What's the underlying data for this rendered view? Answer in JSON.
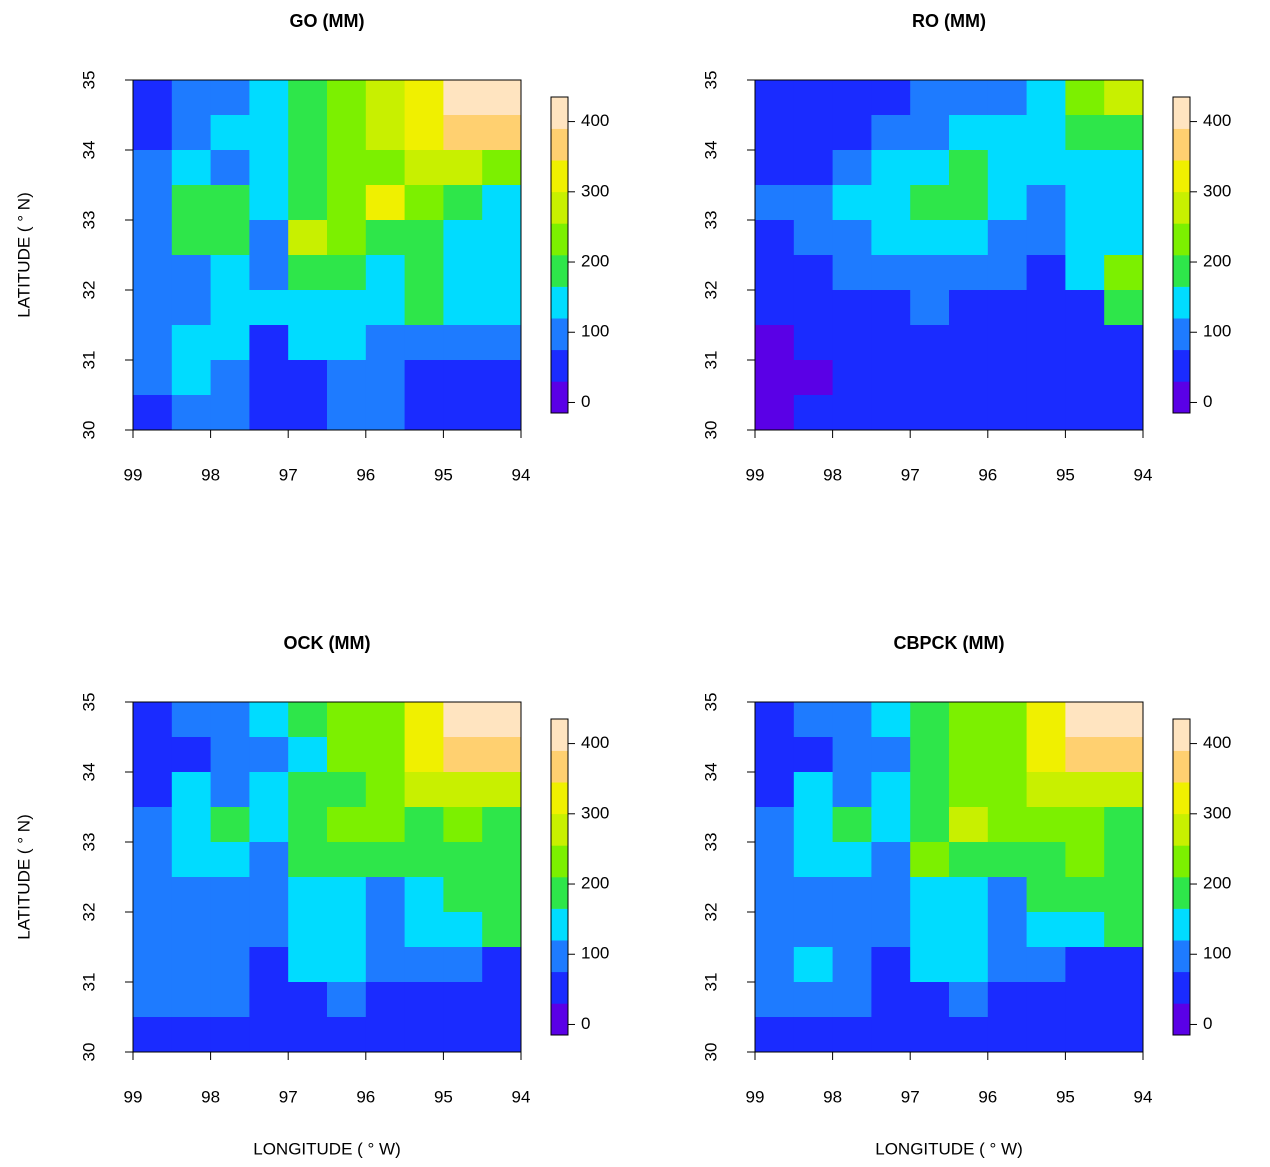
{
  "chart_data": [
    {
      "type": "heatmap",
      "title": "GO (MM)",
      "ylabel": "LATITUDE ( ° N)",
      "x": [
        98.75,
        98.25,
        97.75,
        97.25,
        96.75,
        96.25,
        95.75,
        95.25,
        94.75,
        94.25
      ],
      "y": [
        34.75,
        34.25,
        33.75,
        33.25,
        32.75,
        32.25,
        31.75,
        31.25,
        30.75,
        30.25
      ],
      "z": [
        [
          60,
          90,
          100,
          150,
          190,
          230,
          260,
          330,
          400,
          420
        ],
        [
          50,
          100,
          130,
          120,
          170,
          220,
          260,
          320,
          360,
          350
        ],
        [
          90,
          130,
          80,
          140,
          190,
          220,
          250,
          280,
          260,
          230
        ],
        [
          100,
          180,
          180,
          150,
          170,
          230,
          300,
          240,
          200,
          150
        ],
        [
          90,
          180,
          170,
          80,
          280,
          210,
          180,
          190,
          160,
          130
        ],
        [
          110,
          110,
          140,
          100,
          170,
          190,
          130,
          190,
          150,
          120
        ],
        [
          100,
          100,
          130,
          120,
          120,
          150,
          130,
          170,
          140,
          150
        ],
        [
          110,
          140,
          120,
          60,
          130,
          140,
          100,
          110,
          90,
          80
        ],
        [
          100,
          120,
          110,
          40,
          60,
          100,
          90,
          60,
          50,
          40
        ],
        [
          50,
          100,
          80,
          40,
          70,
          80,
          90,
          40,
          30,
          40
        ]
      ],
      "xlim": [
        99,
        94
      ],
      "ylim": [
        30,
        35
      ],
      "xticks": [
        99,
        98,
        97,
        96,
        95,
        94
      ],
      "yticks": [
        30,
        31,
        32,
        33,
        34,
        35
      ],
      "breaks": [
        -15,
        30,
        75,
        120,
        165,
        210,
        255,
        300,
        345,
        390,
        435
      ],
      "colors": [
        "#5a00e6",
        "#1a2bff",
        "#1e7bff",
        "#00dcff",
        "#2ee64a",
        "#7cf000",
        "#c8f000",
        "#f0f000",
        "#ffd070",
        "#ffe4c0"
      ],
      "colorbar_ticks": [
        0,
        100,
        200,
        300,
        400
      ]
    },
    {
      "type": "heatmap",
      "title": "RO (MM)",
      "x": [
        98.75,
        98.25,
        97.75,
        97.25,
        96.75,
        96.25,
        95.75,
        95.25,
        94.75,
        94.25
      ],
      "y": [
        34.75,
        34.25,
        33.75,
        33.25,
        32.75,
        32.25,
        31.75,
        31.25,
        30.75,
        30.25
      ],
      "z": [
        [
          60,
          70,
          50,
          60,
          80,
          90,
          100,
          150,
          230,
          260
        ],
        [
          70,
          60,
          70,
          80,
          100,
          130,
          150,
          150,
          190,
          200
        ],
        [
          60,
          70,
          100,
          120,
          140,
          170,
          150,
          130,
          160,
          140
        ],
        [
          80,
          100,
          130,
          140,
          170,
          190,
          140,
          100,
          120,
          150
        ],
        [
          60,
          80,
          110,
          120,
          160,
          150,
          110,
          90,
          120,
          150
        ],
        [
          30,
          50,
          80,
          90,
          90,
          100,
          80,
          60,
          160,
          220
        ],
        [
          30,
          40,
          60,
          70,
          80,
          60,
          50,
          50,
          60,
          200
        ],
        [
          20,
          30,
          50,
          60,
          60,
          50,
          40,
          40,
          40,
          50
        ],
        [
          10,
          20,
          40,
          40,
          50,
          40,
          40,
          40,
          40,
          40
        ],
        [
          20,
          30,
          40,
          40,
          40,
          40,
          40,
          40,
          40,
          40
        ]
      ],
      "xlim": [
        99,
        94
      ],
      "ylim": [
        30,
        35
      ],
      "xticks": [
        99,
        98,
        97,
        96,
        95,
        94
      ],
      "yticks": [
        30,
        31,
        32,
        33,
        34,
        35
      ],
      "breaks": [
        -15,
        30,
        75,
        120,
        165,
        210,
        255,
        300,
        345,
        390,
        435
      ],
      "colors": [
        "#5a00e6",
        "#1a2bff",
        "#1e7bff",
        "#00dcff",
        "#2ee64a",
        "#7cf000",
        "#c8f000",
        "#f0f000",
        "#ffd070",
        "#ffe4c0"
      ],
      "colorbar_ticks": [
        0,
        100,
        200,
        300,
        400
      ]
    },
    {
      "type": "heatmap",
      "title": "OCK (MM)",
      "ylabel": "LATITUDE ( ° N)",
      "xlabel": "LONGITUDE ( ° W)",
      "x": [
        98.75,
        98.25,
        97.75,
        97.25,
        96.75,
        96.25,
        95.75,
        95.25,
        94.75,
        94.25
      ],
      "y": [
        34.75,
        34.25,
        33.75,
        33.25,
        32.75,
        32.25,
        31.75,
        31.25,
        30.75,
        30.25
      ],
      "z": [
        [
          50,
          80,
          100,
          130,
          170,
          220,
          240,
          320,
          400,
          410
        ],
        [
          40,
          70,
          110,
          110,
          160,
          220,
          230,
          310,
          360,
          370
        ],
        [
          60,
          120,
          80,
          150,
          180,
          200,
          220,
          270,
          280,
          260
        ],
        [
          90,
          160,
          180,
          150,
          180,
          230,
          210,
          200,
          220,
          170
        ],
        [
          80,
          120,
          150,
          110,
          200,
          180,
          170,
          170,
          200,
          190
        ],
        [
          80,
          90,
          110,
          90,
          130,
          150,
          110,
          160,
          170,
          170
        ],
        [
          80,
          90,
          110,
          100,
          120,
          140,
          110,
          130,
          120,
          170
        ],
        [
          90,
          110,
          100,
          60,
          130,
          130,
          100,
          90,
          80,
          70
        ],
        [
          80,
          100,
          90,
          40,
          60,
          90,
          70,
          50,
          40,
          40
        ],
        [
          60,
          70,
          70,
          40,
          50,
          60,
          50,
          40,
          40,
          40
        ]
      ],
      "xlim": [
        99,
        94
      ],
      "ylim": [
        30,
        35
      ],
      "xticks": [
        99,
        98,
        97,
        96,
        95,
        94
      ],
      "yticks": [
        30,
        31,
        32,
        33,
        34,
        35
      ],
      "breaks": [
        -15,
        30,
        75,
        120,
        165,
        210,
        255,
        300,
        345,
        390,
        435
      ],
      "colors": [
        "#5a00e6",
        "#1a2bff",
        "#1e7bff",
        "#00dcff",
        "#2ee64a",
        "#7cf000",
        "#c8f000",
        "#f0f000",
        "#ffd070",
        "#ffe4c0"
      ],
      "colorbar_ticks": [
        0,
        100,
        200,
        300,
        400
      ]
    },
    {
      "type": "heatmap",
      "title": "CBPCK (MM)",
      "xlabel": "LONGITUDE ( ° W)",
      "x": [
        98.75,
        98.25,
        97.75,
        97.25,
        96.75,
        96.25,
        95.75,
        95.25,
        94.75,
        94.25
      ],
      "y": [
        34.75,
        34.25,
        33.75,
        33.25,
        32.75,
        32.25,
        31.75,
        31.25,
        30.75,
        30.25
      ],
      "z": [
        [
          50,
          80,
          100,
          130,
          180,
          230,
          250,
          330,
          410,
          420
        ],
        [
          40,
          70,
          110,
          110,
          170,
          230,
          240,
          320,
          370,
          380
        ],
        [
          60,
          120,
          80,
          150,
          190,
          210,
          230,
          280,
          290,
          270
        ],
        [
          90,
          160,
          180,
          150,
          200,
          270,
          230,
          210,
          230,
          180
        ],
        [
          80,
          130,
          160,
          110,
          210,
          190,
          180,
          180,
          220,
          200
        ],
        [
          80,
          90,
          100,
          90,
          130,
          150,
          110,
          170,
          180,
          180
        ],
        [
          80,
          90,
          110,
          100,
          120,
          140,
          110,
          140,
          130,
          190
        ],
        [
          90,
          120,
          100,
          40,
          120,
          140,
          100,
          90,
          70,
          60
        ],
        [
          80,
          100,
          90,
          40,
          60,
          90,
          70,
          50,
          40,
          40
        ],
        [
          60,
          70,
          60,
          40,
          50,
          60,
          50,
          40,
          40,
          40
        ]
      ],
      "xlim": [
        99,
        94
      ],
      "ylim": [
        30,
        35
      ],
      "xticks": [
        99,
        98,
        97,
        96,
        95,
        94
      ],
      "yticks": [
        30,
        31,
        32,
        33,
        34,
        35
      ],
      "breaks": [
        -15,
        30,
        75,
        120,
        165,
        210,
        255,
        300,
        345,
        390,
        435
      ],
      "colors": [
        "#5a00e6",
        "#1a2bff",
        "#1e7bff",
        "#00dcff",
        "#2ee64a",
        "#7cf000",
        "#c8f000",
        "#f0f000",
        "#ffd070",
        "#ffe4c0"
      ],
      "colorbar_ticks": [
        0,
        100,
        200,
        300,
        400
      ]
    }
  ]
}
